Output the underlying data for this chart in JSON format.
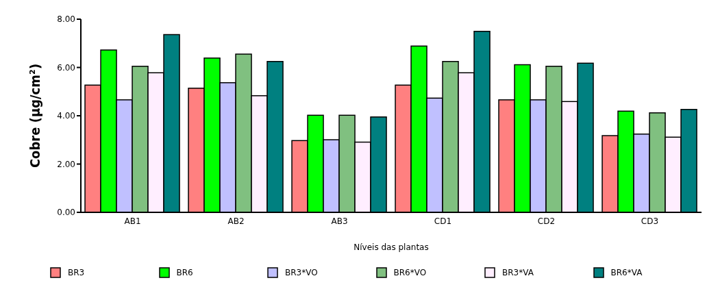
{
  "chart_data": {
    "type": "bar",
    "categories": [
      "AB1",
      "AB2",
      "AB3",
      "CD1",
      "CD2",
      "CD3"
    ],
    "xlabel": "Níveis das plantas",
    "ylabel": "Cobre (µg/cm²)",
    "series": [
      {
        "name": "BR3",
        "color": "#ff8080",
        "values": [
          5.27,
          5.14,
          2.97,
          5.27,
          4.66,
          3.18
        ]
      },
      {
        "name": "BR6",
        "color": "#00ff00",
        "values": [
          6.72,
          6.39,
          4.02,
          6.89,
          6.11,
          4.19
        ]
      },
      {
        "name": "BR3*VO",
        "color": "#c0c0ff",
        "values": [
          4.66,
          5.37,
          3.01,
          4.73,
          4.66,
          3.24
        ]
      },
      {
        "name": "BR6*VO",
        "color": "#80c080",
        "values": [
          6.05,
          6.55,
          4.02,
          6.25,
          6.05,
          4.12
        ]
      },
      {
        "name": "BR3*VA",
        "color": "#ffeeff",
        "values": [
          5.78,
          4.83,
          2.91,
          5.78,
          4.59,
          3.11
        ]
      },
      {
        "name": "BR6*VA",
        "color": "#008080",
        "values": [
          7.36,
          6.25,
          3.95,
          7.5,
          6.18,
          4.26
        ]
      }
    ],
    "ylim": [
      0,
      8
    ],
    "yticks": [
      {
        "value": 0,
        "label": "0.00"
      },
      {
        "value": 2,
        "label": "2.00"
      },
      {
        "value": 4,
        "label": "4.00"
      },
      {
        "value": 6,
        "label": "6.00"
      },
      {
        "value": 8,
        "label": "8.00"
      }
    ],
    "grid": false,
    "legend": "bottom"
  }
}
